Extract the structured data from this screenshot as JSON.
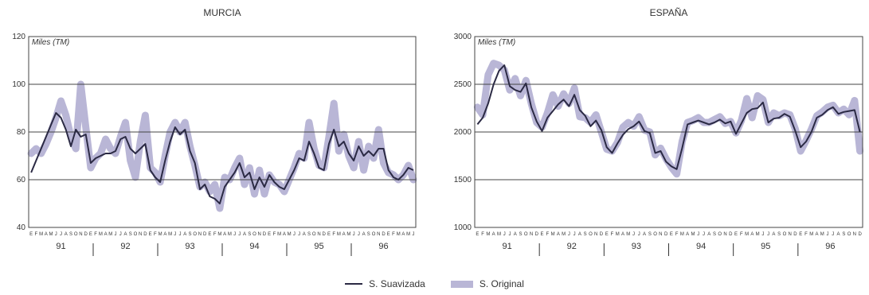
{
  "chart_data": [
    {
      "type": "line",
      "title": "MURCIA",
      "ylabel": "Miles (TM)",
      "ylim": [
        40,
        120
      ],
      "yticks": [
        40,
        60,
        80,
        100,
        120
      ],
      "grid": true,
      "month_letters": [
        "E",
        "F",
        "M",
        "A",
        "M",
        "J",
        "J",
        "A",
        "S",
        "O",
        "N",
        "D"
      ],
      "years": [
        "91",
        "92",
        "93",
        "94",
        "95",
        "96"
      ],
      "series": [
        {
          "name": "S. Suavizada",
          "values": [
            63,
            68,
            73,
            78,
            83,
            88,
            86,
            81,
            74,
            81,
            78,
            79,
            67,
            69,
            70,
            71,
            71,
            72,
            77,
            78,
            73,
            71,
            73,
            75,
            64,
            61,
            59,
            68,
            76,
            82,
            79,
            81,
            72,
            67,
            56,
            58,
            53,
            52,
            50,
            57,
            60,
            63,
            67,
            61,
            63,
            56,
            61,
            57,
            62,
            59,
            57,
            56,
            60,
            64,
            69,
            68,
            76,
            71,
            65,
            64,
            75,
            81,
            74,
            76,
            71,
            68,
            74,
            70,
            72,
            70,
            73,
            73,
            64,
            61,
            60,
            62,
            65,
            64
          ]
        },
        {
          "name": "S. Original",
          "values": [
            71,
            73,
            71,
            75,
            80,
            86,
            93,
            87,
            78,
            73,
            100,
            82,
            65,
            69,
            71,
            77,
            73,
            71,
            78,
            84,
            68,
            61,
            76,
            87,
            65,
            63,
            59,
            70,
            80,
            84,
            80,
            84,
            74,
            66,
            57,
            59,
            55,
            58,
            48,
            61,
            60,
            65,
            69,
            58,
            65,
            54,
            64,
            54,
            62,
            59,
            58,
            55,
            60,
            65,
            71,
            69,
            84,
            73,
            66,
            65,
            78,
            92,
            72,
            79,
            70,
            65,
            76,
            64,
            74,
            69,
            81,
            67,
            63,
            62,
            60,
            62,
            66,
            60
          ]
        }
      ]
    },
    {
      "type": "line",
      "title": "ESPAÑA",
      "ylabel": "Miles (TM)",
      "ylim": [
        1000,
        3000
      ],
      "yticks": [
        1000,
        1500,
        2000,
        2500,
        3000
      ],
      "grid": true,
      "month_letters": [
        "E",
        "F",
        "M",
        "A",
        "M",
        "J",
        "J",
        "A",
        "S",
        "O",
        "N",
        "D"
      ],
      "years": [
        "91",
        "92",
        "93",
        "94",
        "95",
        "96"
      ],
      "series": [
        {
          "name": "S. Suavizada",
          "values": [
            2080,
            2150,
            2300,
            2500,
            2640,
            2700,
            2480,
            2440,
            2420,
            2510,
            2260,
            2110,
            2010,
            2150,
            2220,
            2290,
            2340,
            2270,
            2390,
            2230,
            2170,
            2060,
            2120,
            2020,
            1840,
            1780,
            1880,
            1970,
            2030,
            2060,
            2110,
            2010,
            1990,
            1780,
            1800,
            1690,
            1640,
            1610,
            1830,
            2080,
            2100,
            2120,
            2100,
            2080,
            2100,
            2130,
            2090,
            2110,
            1980,
            2090,
            2200,
            2240,
            2250,
            2310,
            2100,
            2140,
            2150,
            2190,
            2160,
            2010,
            1840,
            1900,
            2000,
            2150,
            2180,
            2230,
            2260,
            2190,
            2210,
            2220,
            2230,
            2000
          ]
        },
        {
          "name": "S. Original",
          "values": [
            2260,
            2180,
            2600,
            2720,
            2700,
            2650,
            2440,
            2560,
            2380,
            2540,
            2300,
            2100,
            2050,
            2200,
            2390,
            2270,
            2400,
            2300,
            2460,
            2160,
            2150,
            2100,
            2180,
            2000,
            1820,
            1800,
            1890,
            2050,
            2100,
            2060,
            2160,
            2020,
            2000,
            1760,
            1830,
            1720,
            1630,
            1560,
            1900,
            2100,
            2120,
            2150,
            2100,
            2100,
            2130,
            2160,
            2090,
            2110,
            1990,
            2120,
            2350,
            2150,
            2380,
            2340,
            2100,
            2200,
            2170,
            2200,
            2180,
            2030,
            1800,
            1910,
            2030,
            2170,
            2210,
            2260,
            2280,
            2200,
            2240,
            2180,
            2330,
            1800
          ]
        }
      ]
    }
  ],
  "legend": {
    "items": [
      {
        "label": "S. Suavizada",
        "color": "#2b2a44"
      },
      {
        "label": "S. Original",
        "color": "#b9b6d6"
      }
    ]
  },
  "colors": {
    "smooth": "#2b2a44",
    "band": "#b9b6d6",
    "grid": "#444444"
  }
}
